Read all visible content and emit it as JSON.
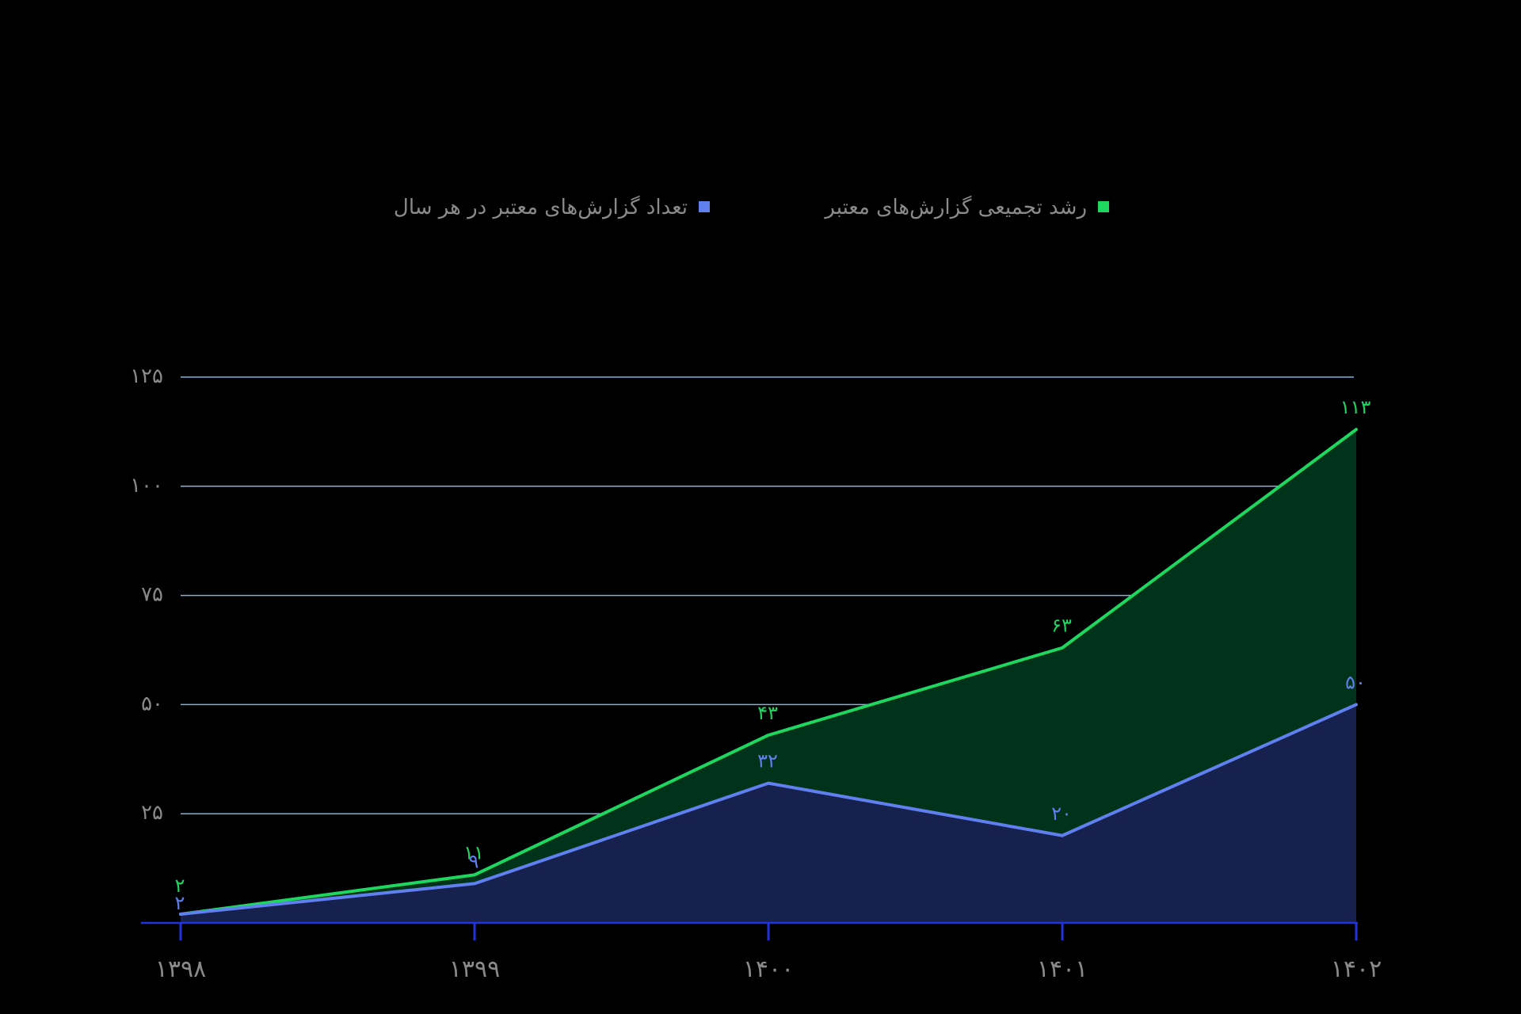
{
  "chart_data": {
    "type": "area",
    "title": "",
    "xlabel": "",
    "ylabel": "",
    "x": [
      "۱۳۹۸",
      "۱۳۹۹",
      "۱۴۰۰",
      "۱۴۰۱",
      "۱۴۰۲"
    ],
    "series": [
      {
        "name": "رشد تجمیعی گزارش‌های معتبر",
        "values": [
          2,
          11,
          43,
          63,
          113
        ],
        "labels": [
          "۲",
          "۱۱",
          "۴۳",
          "۶۳",
          "۱۱۳"
        ],
        "color": "#1ed760",
        "fill": "#00331a"
      },
      {
        "name": "تعداد گزارش‌های معتبر در هر سال",
        "values": [
          2,
          9,
          32,
          20,
          50
        ],
        "labels": [
          "۲",
          "۹",
          "۳۲",
          "۲۰",
          "۵۰"
        ],
        "color": "#6080f0",
        "fill": "#16214d"
      }
    ],
    "ylim": [
      0,
      125
    ],
    "yticks": [
      25,
      50,
      75,
      100,
      125
    ],
    "ytick_labels": [
      "۲۵",
      "۵۰",
      "۷۵",
      "۱۰۰",
      "۱۲۵"
    ],
    "grid": true,
    "legend": "top-center",
    "colors": {
      "gridline": "#7fb2d8",
      "axis": "#2233dd",
      "text": "#8a8a8a",
      "background": "#000000"
    }
  }
}
